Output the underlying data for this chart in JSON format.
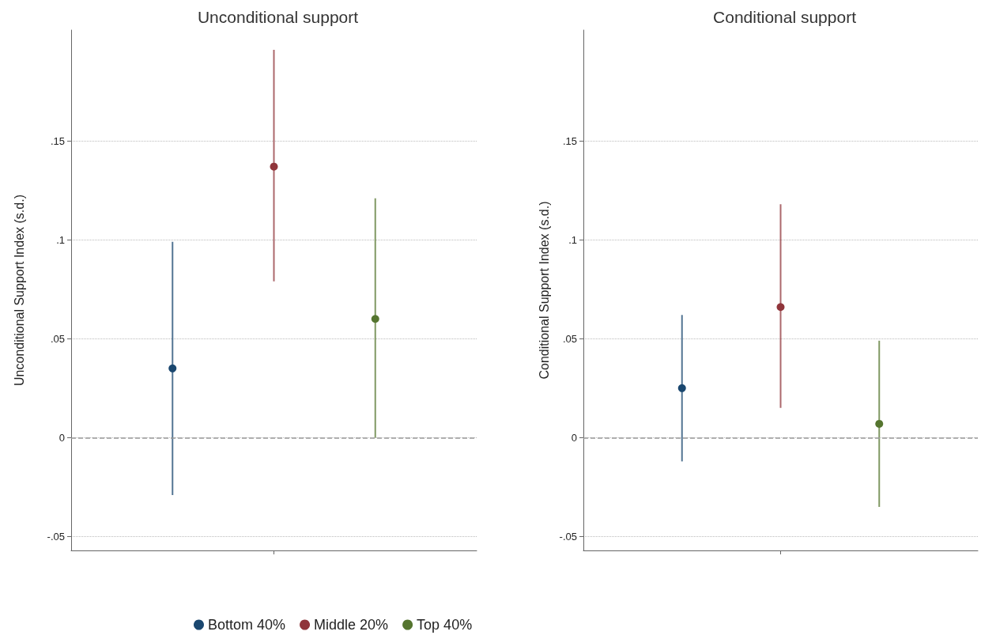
{
  "chart_data": [
    {
      "type": "scatter",
      "title": "Unconditional support",
      "ylabel": "Unconditional Support Index (s.d.)",
      "categories": [
        null,
        null,
        null
      ],
      "ylim": [
        -0.057,
        0.206
      ],
      "yticks": [
        {
          "value": -0.05,
          "label": "-.05"
        },
        0,
        {
          "value": 0.05,
          "label": ".05"
        },
        {
          "value": 0.1,
          "label": ".1"
        },
        {
          "value": 0.15,
          "label": ".15"
        }
      ],
      "grid": "y",
      "legend": "bottom",
      "marker": "circle",
      "ref_lines": [
        {
          "axis": "y",
          "value": 0,
          "color": "#999999",
          "line_style": "dashed"
        }
      ],
      "series": [
        {
          "name": "Bottom 40%",
          "color": "#1a476f",
          "values": [
            0.035,
            null,
            null
          ],
          "errors": [
            [
              -0.029,
              0.099
            ],
            null,
            null
          ]
        },
        {
          "name": "Middle 20%",
          "color": "#90353b",
          "values": [
            null,
            0.137,
            null
          ],
          "errors": [
            null,
            [
              0.079,
              0.196
            ],
            null
          ]
        },
        {
          "name": "Top 40%",
          "color": "#55752f",
          "values": [
            null,
            null,
            0.06
          ],
          "errors": [
            null,
            null,
            [
              0.0,
              0.121
            ]
          ]
        }
      ]
    },
    {
      "type": "scatter",
      "title": "Conditional support",
      "ylabel": "Conditional Support Index (s.d.)",
      "categories": [
        null,
        null,
        null
      ],
      "ylim": [
        -0.057,
        0.206
      ],
      "yticks": [
        {
          "value": -0.05,
          "label": "-.05"
        },
        0,
        {
          "value": 0.05,
          "label": ".05"
        },
        {
          "value": 0.1,
          "label": ".1"
        },
        {
          "value": 0.15,
          "label": ".15"
        }
      ],
      "grid": "y",
      "marker": "circle",
      "ref_lines": [
        {
          "axis": "y",
          "value": 0,
          "color": "#999999",
          "line_style": "dashed"
        }
      ],
      "series": [
        {
          "color": "#1a476f",
          "values": [
            0.025,
            null,
            null
          ],
          "errors": [
            [
              -0.012,
              0.062
            ],
            null,
            null
          ]
        },
        {
          "color": "#90353b",
          "values": [
            null,
            0.066,
            null
          ],
          "errors": [
            null,
            [
              0.015,
              0.118
            ],
            null
          ]
        },
        {
          "color": "#55752f",
          "values": [
            null,
            null,
            0.007
          ],
          "errors": [
            null,
            null,
            [
              -0.035,
              0.049
            ]
          ]
        }
      ]
    }
  ]
}
